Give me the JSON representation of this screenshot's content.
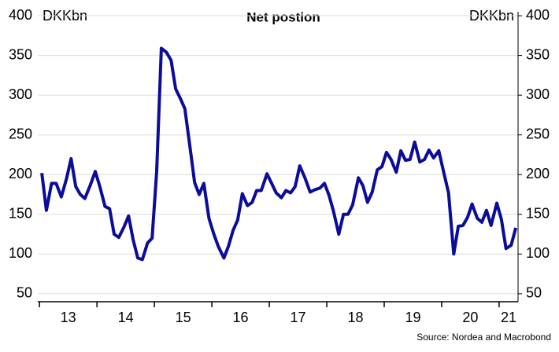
{
  "chart_data": {
    "type": "line",
    "title": "Net postion",
    "y_unit_label": "DKKbn",
    "y2_unit_label": "DKKbn",
    "source": "Source: Nordea and Macrobond",
    "xlim": [
      12.97,
      21.33
    ],
    "xticks": [
      {
        "value": 13,
        "label": "13"
      },
      {
        "value": 14,
        "label": "14"
      },
      {
        "value": 15,
        "label": "15"
      },
      {
        "value": 16,
        "label": "16"
      },
      {
        "value": 17,
        "label": "17"
      },
      {
        "value": 18,
        "label": "18"
      },
      {
        "value": 19,
        "label": "19"
      },
      {
        "value": 20,
        "label": "20"
      },
      {
        "value": 21,
        "label": "21"
      }
    ],
    "ylim": [
      40,
      405
    ],
    "yticks": [
      50,
      100,
      150,
      200,
      250,
      300,
      350,
      400
    ],
    "y2lim": [
      40,
      405
    ],
    "y2ticks": [
      50,
      100,
      150,
      200,
      250,
      300,
      350,
      400
    ],
    "grid": true,
    "x": [
      13.04,
      13.12,
      13.21,
      13.29,
      13.38,
      13.47,
      13.55,
      13.63,
      13.71,
      13.79,
      13.88,
      13.97,
      14.05,
      14.14,
      14.22,
      14.3,
      14.38,
      14.47,
      14.55,
      14.63,
      14.71,
      14.79,
      14.88,
      14.96,
      15.04,
      15.12,
      15.21,
      15.29,
      15.37,
      15.45,
      15.53,
      15.62,
      15.7,
      15.78,
      15.86,
      15.95,
      16.03,
      16.11,
      16.21,
      16.29,
      16.37,
      16.45,
      16.53,
      16.62,
      16.7,
      16.78,
      16.86,
      16.96,
      17.04,
      17.12,
      17.21,
      17.29,
      17.37,
      17.45,
      17.53,
      17.62,
      17.71,
      17.79,
      17.88,
      17.96,
      18.04,
      18.12,
      18.21,
      18.29,
      18.37,
      18.45,
      18.55,
      18.63,
      18.71,
      18.79,
      18.88,
      18.96,
      19.04,
      19.12,
      19.21,
      19.29,
      19.37,
      19.45,
      19.53,
      19.62,
      19.7,
      19.78,
      19.86,
      19.95,
      20.03,
      20.12,
      20.21,
      20.29,
      20.37,
      20.45,
      20.53,
      20.62,
      20.7,
      20.78,
      20.86,
      20.96,
      21.04,
      21.12,
      21.21,
      21.29
    ],
    "series": [
      {
        "name": "Net postion",
        "color": "#0c0c9a",
        "values": [
          202,
          155,
          189,
          189,
          172,
          195,
          220,
          185,
          175,
          170,
          186,
          204,
          185,
          160,
          157,
          125,
          121,
          134,
          148,
          118,
          95,
          93,
          114,
          120,
          204,
          359,
          354,
          344,
          308,
          296,
          283,
          234,
          190,
          175,
          189,
          145,
          126,
          110,
          95,
          110,
          130,
          143,
          176,
          161,
          165,
          180,
          180,
          201,
          189,
          177,
          171,
          180,
          177,
          185,
          211,
          196,
          178,
          181,
          183,
          189,
          174,
          153,
          125,
          150,
          150,
          162,
          196,
          186,
          165,
          178,
          206,
          210,
          228,
          219,
          203,
          230,
          218,
          219,
          241,
          216,
          219,
          231,
          221,
          230,
          205,
          177,
          100,
          135,
          136,
          146,
          163,
          145,
          140,
          155,
          136,
          164,
          144,
          107,
          111,
          133
        ]
      }
    ]
  }
}
